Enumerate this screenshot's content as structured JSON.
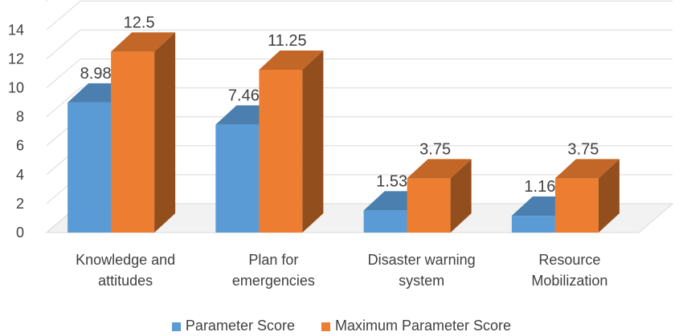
{
  "chart_data": {
    "type": "bar",
    "categories": [
      [
        "Knowledge and",
        "attitudes"
      ],
      [
        "Plan for",
        "emergencies"
      ],
      [
        "Disaster warning",
        "system"
      ],
      [
        "Resource",
        "Mobilization"
      ]
    ],
    "series": [
      {
        "name": "Parameter Score",
        "values": [
          8.98,
          7.46,
          1.53,
          1.16
        ],
        "labels": [
          "8.98",
          "7.46",
          "1.53",
          "1.16"
        ],
        "color": "#5B9BD5"
      },
      {
        "name": "Maximum Parameter Score",
        "values": [
          12.5,
          11.25,
          3.75,
          3.75
        ],
        "labels": [
          "12.5",
          "11.25",
          "3.75",
          "3.75"
        ],
        "color": "#ED7D31"
      }
    ],
    "yticks": [
      "0",
      "2",
      "4",
      "6",
      "8",
      "10",
      "12",
      "14"
    ],
    "ylim": [
      0,
      16
    ],
    "grid": true,
    "legend_position": "bottom",
    "style": "3d-clustered-column"
  }
}
